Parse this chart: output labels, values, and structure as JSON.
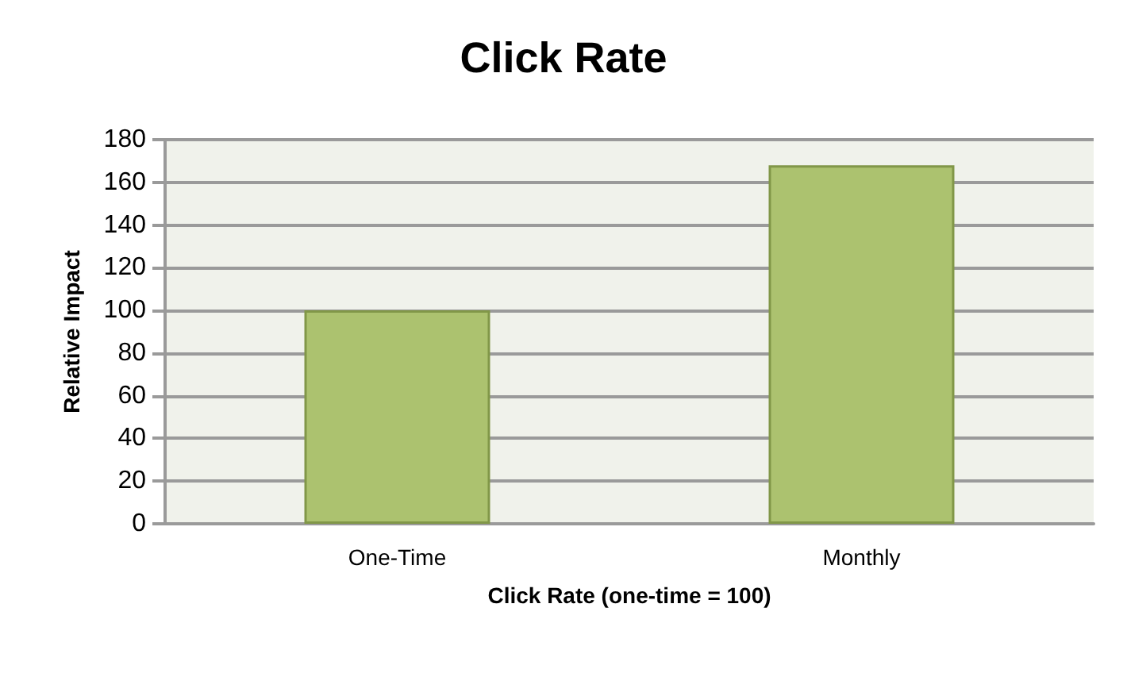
{
  "chart_data": {
    "type": "bar",
    "title": "Click Rate",
    "xlabel": "Click Rate (one-time = 100)",
    "ylabel": "Relative Impact",
    "categories": [
      "One-Time",
      "Monthly"
    ],
    "values": [
      100,
      168
    ],
    "color": "#acc26f",
    "ylim": [
      0,
      180
    ],
    "yticks": [
      0,
      20,
      40,
      60,
      80,
      100,
      120,
      140,
      160,
      180
    ],
    "grid": "y"
  }
}
